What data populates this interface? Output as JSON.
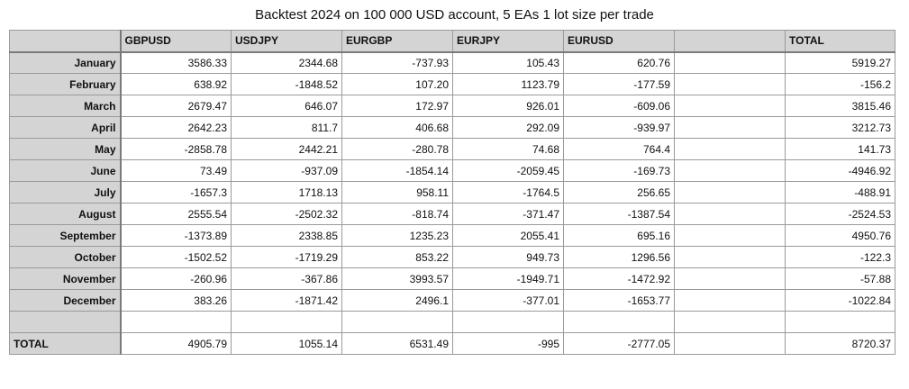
{
  "title": "Backtest 2024 on 100 000 USD account, 5 EAs 1 lot size per trade",
  "columns": [
    "",
    "GBPUSD",
    "USDJPY",
    "EURGBP",
    "EURJPY",
    "EURUSD",
    "",
    "TOTAL"
  ],
  "rows": [
    {
      "label": "January",
      "values": [
        "3586.33",
        "2344.68",
        "-737.93",
        "105.43",
        "620.76",
        "",
        "5919.27"
      ]
    },
    {
      "label": "February",
      "values": [
        "638.92",
        "-1848.52",
        "107.20",
        "1123.79",
        "-177.59",
        "",
        "-156.2"
      ]
    },
    {
      "label": "March",
      "values": [
        "2679.47",
        "646.07",
        "172.97",
        "926.01",
        "-609.06",
        "",
        "3815.46"
      ]
    },
    {
      "label": "April",
      "values": [
        "2642.23",
        "811.7",
        "406.68",
        "292.09",
        "-939.97",
        "",
        "3212.73"
      ]
    },
    {
      "label": "May",
      "values": [
        "-2858.78",
        "2442.21",
        "-280.78",
        "74.68",
        "764.4",
        "",
        "141.73"
      ]
    },
    {
      "label": "June",
      "values": [
        "73.49",
        "-937.09",
        "-1854.14",
        "-2059.45",
        "-169.73",
        "",
        "-4946.92"
      ]
    },
    {
      "label": "July",
      "values": [
        "-1657.3",
        "1718.13",
        "958.11",
        "-1764.5",
        "256.65",
        "",
        "-488.91"
      ]
    },
    {
      "label": "August",
      "values": [
        "2555.54",
        "-2502.32",
        "-818.74",
        "-371.47",
        "-1387.54",
        "",
        "-2524.53"
      ]
    },
    {
      "label": "September",
      "values": [
        "-1373.89",
        "2338.85",
        "1235.23",
        "2055.41",
        "695.16",
        "",
        "4950.76"
      ]
    },
    {
      "label": "October",
      "values": [
        "-1502.52",
        "-1719.29",
        "853.22",
        "949.73",
        "1296.56",
        "",
        "-122.3"
      ]
    },
    {
      "label": "November",
      "values": [
        "-260.96",
        "-367.86",
        "3993.57",
        "-1949.71",
        "-1472.92",
        "",
        "-57.88"
      ]
    },
    {
      "label": "December",
      "values": [
        "383.26",
        "-1871.42",
        "2496.1",
        "-377.01",
        "-1653.77",
        "",
        "-1022.84"
      ]
    },
    {
      "label": "",
      "values": [
        "",
        "",
        "",
        "",
        "",
        "",
        ""
      ]
    },
    {
      "label": "TOTAL",
      "values": [
        "4905.79",
        "1055.14",
        "6531.49",
        "-995",
        "-2777.05",
        "",
        "8720.37"
      ]
    }
  ]
}
